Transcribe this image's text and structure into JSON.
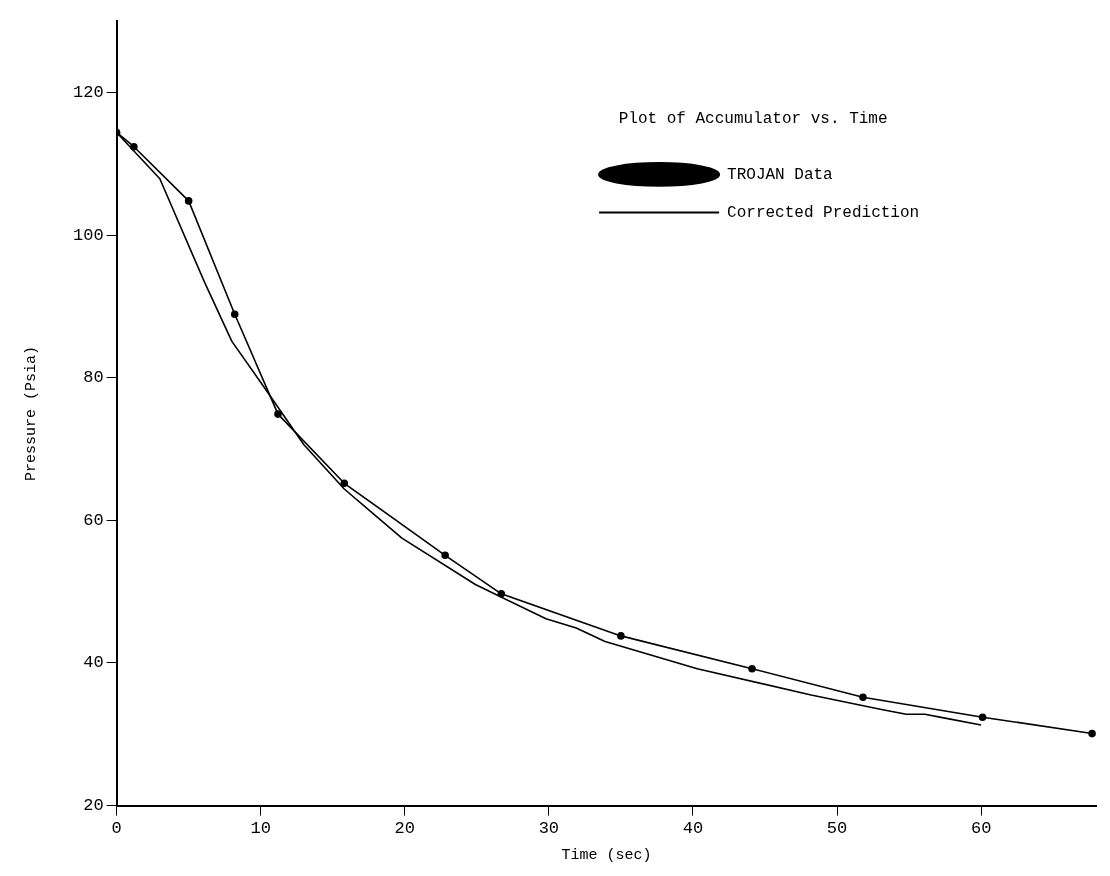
{
  "chart_data": {
    "type": "line",
    "xlabel": "Time (sec)",
    "ylabel": "Pressure (Psia)",
    "legend_title": "Plot of Accumulator vs. Time",
    "legend": "top right",
    "grid": false,
    "xlim": [
      0,
      68
    ],
    "xticks": [
      0,
      10,
      20,
      30,
      40,
      50,
      60
    ],
    "ylim": [
      20,
      130
    ],
    "yticks": [
      20,
      40,
      60,
      80,
      100,
      120
    ],
    "series": [
      {
        "name": "TROJAN Data",
        "color": "#000000",
        "marker": "circle",
        "x": [
          0,
          1.2,
          5.0,
          8.2,
          11.2,
          15.8,
          22.8,
          26.7,
          35.0,
          44.1,
          51.8,
          60.1,
          67.7
        ],
        "values": [
          114.4,
          112.4,
          104.8,
          88.9,
          74.9,
          65.2,
          55.1,
          49.7,
          43.8,
          39.2,
          35.2,
          32.4,
          30.1
        ]
      },
      {
        "name": "Corrected Prediction",
        "color": "#000000",
        "marker": "none",
        "x": [
          0,
          3.0,
          6.1,
          8.0,
          10.3,
          13.0,
          15.8,
          19.8,
          24.9,
          29.8,
          31.9,
          33.9,
          40.3,
          48.2,
          53.0,
          54.8,
          56.1,
          57.4,
          60
        ],
        "values": [
          114.4,
          107.9,
          93.4,
          85.1,
          78.5,
          70.6,
          64.4,
          57.5,
          51.0,
          46.2,
          44.9,
          43.0,
          39.2,
          35.5,
          33.5,
          32.8,
          32.8,
          32.3,
          31.3
        ]
      }
    ]
  }
}
